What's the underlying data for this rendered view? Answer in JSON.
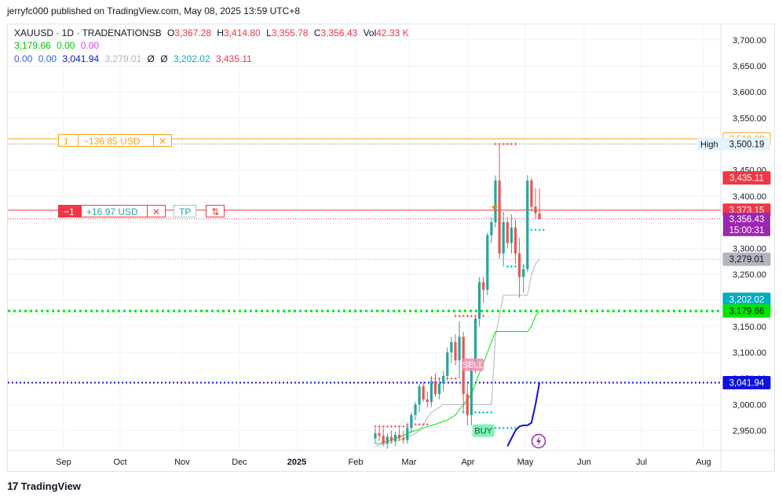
{
  "publish_line": "jerryfc000 published on TradingView.com, May 08, 2025 13:59 UTC+8",
  "legend": {
    "symbol": "XAUUSD · 1D · TRADENATIONSB",
    "open_label": "O",
    "open": "3,367.28",
    "high_label": "H",
    "high": "3,414.80",
    "low_label": "L",
    "low": "3,355.78",
    "close_label": "C",
    "close": "3,356.43",
    "vol_label": "Vol",
    "vol": "42.33 K",
    "row2": [
      "3,179.66",
      "0.00",
      "0.00"
    ],
    "row3": [
      "0.00",
      "0.00",
      "3,041.94",
      "3,279.01",
      "Ø",
      "Ø",
      "3,202.02",
      "3,435.11"
    ]
  },
  "positions": {
    "upper": {
      "qty": "1",
      "pnl": "−136.85 USD",
      "close_icon": "✕"
    },
    "lower": {
      "qty": "−1",
      "pnl": "+16.97 USD",
      "close_icon": "✕",
      "tp": "TP",
      "reverse_icon": "⇅"
    }
  },
  "axis_labels": {
    "high_tag": "High",
    "high_price": "3,500.19",
    "orange_price": "3,510.00",
    "red_price": "3,435.11",
    "pos_price": "3,373.15",
    "last_price": "3,356.43",
    "countdown": "15:00:31",
    "gray_price": "3,279.01",
    "teal_price": "3,202.02",
    "green_price": "3,179.66",
    "blue_price": "3,041.94"
  },
  "markers": {
    "sell": "SELL",
    "buy": "BUY",
    "flash_icon": "lightning-icon"
  },
  "footer": {
    "brand": "TradingView",
    "logo_glyph": "17"
  },
  "colors": {
    "up": "#26a69a",
    "down": "#ef5350",
    "orange": "#f7a21b",
    "red": "#f23645",
    "green": "#00e600",
    "blue": "#1010e0",
    "purple": "#9c27b0",
    "teal": "#00bcd4",
    "gray": "#b2b5be"
  },
  "chart_data": {
    "type": "candlestick",
    "y_ticks": [
      2950,
      3000,
      3050,
      3100,
      3150,
      3200,
      3250,
      3300,
      3350,
      3400,
      3450,
      3500,
      3550,
      3600,
      3650,
      3700
    ],
    "y_tick_labels": [
      "2,950.00",
      "3,000.00",
      "3,050.00",
      "3,100.00",
      "3,150.00",
      "3,200.00",
      "3,250.00",
      "3,300.00",
      "3,350.00",
      "3,400.00",
      "3,450.00",
      "3,500.00",
      "3,550.00",
      "3,600.00",
      "3,650.00",
      "3,700.00"
    ],
    "x_labels": [
      "Sep",
      "Oct",
      "Nov",
      "Dec",
      "2025",
      "Feb",
      "Mar",
      "Apr",
      "May",
      "Jun",
      "Jul",
      "Aug"
    ],
    "ylim": [
      2915,
      3730
    ],
    "horizontal_lines": [
      {
        "name": "position-1-entry",
        "price": 3510.0,
        "color": "#f7a21b"
      },
      {
        "name": "position-2-entry",
        "price": 3373.15,
        "color": "#f23645"
      },
      {
        "name": "green-level",
        "price": 3179.66,
        "color": "#00e600"
      },
      {
        "name": "blue-level",
        "price": 3041.94,
        "color": "#1010e0"
      }
    ],
    "candles": [
      {
        "o": 2935,
        "h": 2955,
        "l": 2925,
        "c": 2945
      },
      {
        "o": 2945,
        "h": 2960,
        "l": 2930,
        "c": 2940
      },
      {
        "o": 2940,
        "h": 2955,
        "l": 2920,
        "c": 2925
      },
      {
        "o": 2925,
        "h": 2945,
        "l": 2915,
        "c": 2938
      },
      {
        "o": 2938,
        "h": 2950,
        "l": 2925,
        "c": 2930
      },
      {
        "o": 2930,
        "h": 2948,
        "l": 2920,
        "c": 2942
      },
      {
        "o": 2942,
        "h": 2955,
        "l": 2930,
        "c": 2935
      },
      {
        "o": 2935,
        "h": 2950,
        "l": 2925,
        "c": 2932
      },
      {
        "o": 2932,
        "h": 2960,
        "l": 2925,
        "c": 2955
      },
      {
        "o": 2955,
        "h": 2985,
        "l": 2945,
        "c": 2980
      },
      {
        "o": 2980,
        "h": 3005,
        "l": 2970,
        "c": 3000
      },
      {
        "o": 3000,
        "h": 3040,
        "l": 2985,
        "c": 3035
      },
      {
        "o": 3035,
        "h": 3045,
        "l": 3005,
        "c": 3010
      },
      {
        "o": 3010,
        "h": 3025,
        "l": 2995,
        "c": 3005
      },
      {
        "o": 3005,
        "h": 3055,
        "l": 2995,
        "c": 3045
      },
      {
        "o": 3045,
        "h": 3060,
        "l": 3015,
        "c": 3020
      },
      {
        "o": 3020,
        "h": 3050,
        "l": 3010,
        "c": 3040
      },
      {
        "o": 3040,
        "h": 3065,
        "l": 3025,
        "c": 3055
      },
      {
        "o": 3055,
        "h": 3110,
        "l": 3045,
        "c": 3100
      },
      {
        "o": 3100,
        "h": 3130,
        "l": 3080,
        "c": 3120
      },
      {
        "o": 3120,
        "h": 3135,
        "l": 3075,
        "c": 3085
      },
      {
        "o": 3085,
        "h": 3160,
        "l": 3050,
        "c": 3130
      },
      {
        "o": 3130,
        "h": 3140,
        "l": 2985,
        "c": 3020
      },
      {
        "o": 3020,
        "h": 3040,
        "l": 2960,
        "c": 2980
      },
      {
        "o": 2980,
        "h": 3080,
        "l": 2960,
        "c": 3070
      },
      {
        "o": 3070,
        "h": 3170,
        "l": 3060,
        "c": 3165
      },
      {
        "o": 3165,
        "h": 3245,
        "l": 3150,
        "c": 3235
      },
      {
        "o": 3235,
        "h": 3245,
        "l": 3195,
        "c": 3220
      },
      {
        "o": 3220,
        "h": 3330,
        "l": 3210,
        "c": 3325
      },
      {
        "o": 3325,
        "h": 3360,
        "l": 3310,
        "c": 3350
      },
      {
        "o": 3350,
        "h": 3440,
        "l": 3340,
        "c": 3430
      },
      {
        "o": 3430,
        "h": 3500,
        "l": 3280,
        "c": 3290
      },
      {
        "o": 3290,
        "h": 3370,
        "l": 3265,
        "c": 3350
      },
      {
        "o": 3350,
        "h": 3360,
        "l": 3300,
        "c": 3310
      },
      {
        "o": 3310,
        "h": 3365,
        "l": 3290,
        "c": 3340
      },
      {
        "o": 3340,
        "h": 3355,
        "l": 3270,
        "c": 3290
      },
      {
        "o": 3290,
        "h": 3320,
        "l": 3205,
        "c": 3245
      },
      {
        "o": 3245,
        "h": 3270,
        "l": 3215,
        "c": 3260
      },
      {
        "o": 3260,
        "h": 3440,
        "l": 3255,
        "c": 3430
      },
      {
        "o": 3430,
        "h": 3435,
        "l": 3370,
        "c": 3380
      },
      {
        "o": 3380,
        "h": 3415,
        "l": 3356,
        "c": 3367
      },
      {
        "o": 3367,
        "h": 3415,
        "l": 3356,
        "c": 3356
      }
    ],
    "green_line": [
      2925,
      2925,
      2928,
      2930,
      2932,
      2935,
      2938,
      2940,
      2945,
      2948,
      2950,
      2952,
      2955,
      2958,
      2960,
      2962,
      2965,
      2968,
      2970,
      2975,
      2980,
      2990,
      3000,
      3010,
      3020,
      3040,
      3060,
      3080,
      3100,
      3120,
      3140,
      3140,
      3140,
      3140,
      3140,
      3140,
      3140,
      3140,
      3140,
      3150,
      3170,
      3180
    ],
    "gray_line": [
      2920,
      2922,
      2924,
      2926,
      2928,
      2930,
      2932,
      2935,
      2938,
      2940,
      2945,
      2950,
      2960,
      2975,
      2985,
      2990,
      2995,
      3000,
      3000,
      3000,
      3000,
      3000,
      3000,
      3000,
      3000,
      3000,
      3000,
      3000,
      3000,
      3000,
      3130,
      3170,
      3210,
      3210,
      3210,
      3210,
      3210,
      3210,
      3210,
      3250,
      3270,
      3279
    ],
    "blue_line": [
      null,
      null,
      null,
      null,
      null,
      null,
      null,
      null,
      null,
      null,
      null,
      null,
      null,
      null,
      null,
      null,
      null,
      null,
      null,
      null,
      null,
      null,
      null,
      null,
      null,
      null,
      null,
      null,
      null,
      null,
      null,
      null,
      null,
      2920,
      2935,
      2950,
      2958,
      2960,
      2960,
      2965,
      3000,
      3042
    ],
    "red_crosses": [
      {
        "from": 0,
        "to": 8,
        "price": 2958
      },
      {
        "from": 8,
        "to": 13,
        "price": 2962
      },
      {
        "from": 14,
        "to": 20,
        "price": 3050
      },
      {
        "from": 20,
        "to": 27,
        "price": 3170
      },
      {
        "from": 30,
        "to": 35,
        "price": 3500
      }
    ],
    "teal_crosses": [
      {
        "from": 22,
        "to": 29,
        "price": 2985
      },
      {
        "from": 29,
        "to": 35,
        "price": 2955
      },
      {
        "from": 33,
        "to": 37,
        "price": 3265
      },
      {
        "from": 38,
        "to": 42,
        "price": 3335
      }
    ]
  }
}
